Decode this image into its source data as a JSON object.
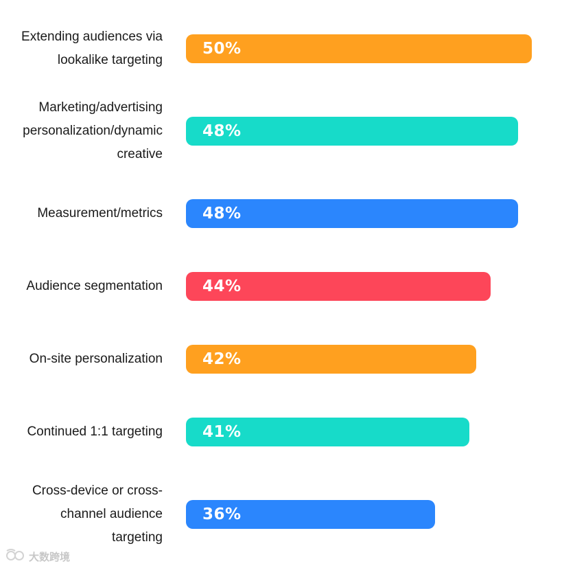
{
  "chart_data": {
    "type": "bar",
    "orientation": "horizontal",
    "categories": [
      "Extending audiences via lookalike targeting",
      "Marketing/advertising personalization/dynamic creative",
      "Measurement/metrics",
      "Audience segmentation",
      "On-site personalization",
      "Continued 1:1 targeting",
      "Cross-device or cross-channel audience targeting"
    ],
    "category_lines": [
      [
        "Extending audiences via",
        "lookalike targeting"
      ],
      [
        "Marketing/advertising",
        "personalization/dynamic",
        "creative"
      ],
      [
        "Measurement/metrics"
      ],
      [
        "Audience segmentation"
      ],
      [
        "On-site personalization"
      ],
      [
        "Continued 1:1 targeting"
      ],
      [
        "Cross-device or cross-",
        "channel audience",
        "targeting"
      ]
    ],
    "values": [
      50,
      48,
      48,
      44,
      42,
      41,
      36
    ],
    "value_labels": [
      "50%",
      "48%",
      "48%",
      "44%",
      "42%",
      "41%",
      "36%"
    ],
    "colors": [
      "#FFA01F",
      "#17DBC9",
      "#2B86FD",
      "#FD4659",
      "#FFA01F",
      "#17DBC9",
      "#2B86FD"
    ],
    "value_unit": "%",
    "xlim": [
      0,
      50
    ],
    "grid": false,
    "legend": "none",
    "title": "",
    "xlabel": "",
    "ylabel": ""
  },
  "watermark": {
    "text": "大数跨境",
    "icon": "watermark-logo-icon"
  }
}
